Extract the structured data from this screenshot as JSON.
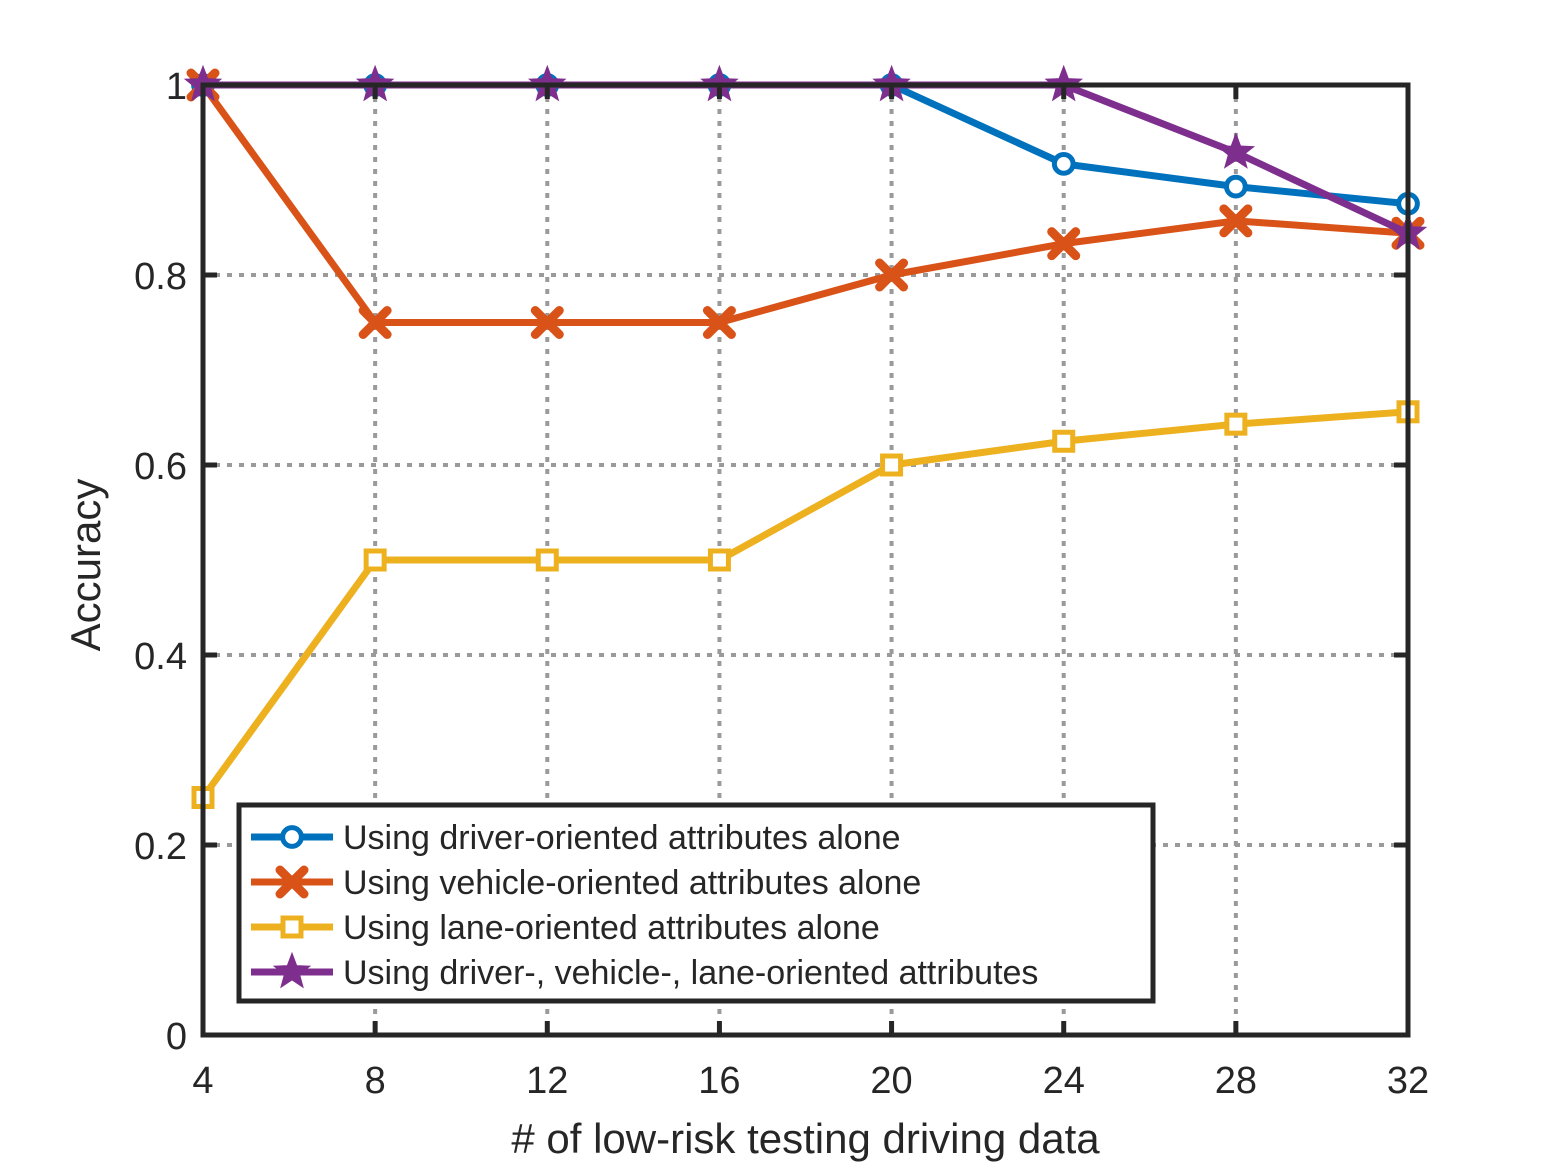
{
  "chart_data": {
    "type": "line",
    "xlabel": "# of low-risk testing driving data",
    "ylabel": "Accuracy",
    "x": [
      4,
      8,
      12,
      16,
      20,
      24,
      28,
      32
    ],
    "xlim": [
      4,
      32
    ],
    "ylim": [
      0,
      1
    ],
    "xticks": [
      "4",
      "8",
      "12",
      "16",
      "20",
      "24",
      "28",
      "32"
    ],
    "yticks": [
      "0",
      "0.2",
      "0.4",
      "0.6",
      "0.8",
      "1"
    ],
    "ytick_values": [
      0,
      0.2,
      0.4,
      0.6,
      0.8,
      1
    ],
    "grid": true,
    "legend_position": "bottom-center",
    "series": [
      {
        "name": "Using driver-oriented attributes alone",
        "color": "#0072BD",
        "marker": "circle",
        "values": [
          1,
          1,
          1,
          1,
          1,
          0.917,
          0.893,
          0.875
        ]
      },
      {
        "name": "Using vehicle-oriented attributes alone",
        "color": "#D95319",
        "marker": "x-filled",
        "values": [
          1,
          0.75,
          0.75,
          0.75,
          0.8,
          0.833,
          0.857,
          0.844
        ]
      },
      {
        "name": "Using lane-oriented attributes alone",
        "color": "#EDB120",
        "marker": "square",
        "values": [
          0.25,
          0.5,
          0.5,
          0.5,
          0.6,
          0.625,
          0.643,
          0.656
        ]
      },
      {
        "name": "Using driver-, vehicle-, lane-oriented attributes",
        "color": "#7E2F8E",
        "marker": "star",
        "values": [
          1,
          1,
          1,
          1,
          1,
          1,
          0.929,
          0.844
        ]
      }
    ]
  }
}
